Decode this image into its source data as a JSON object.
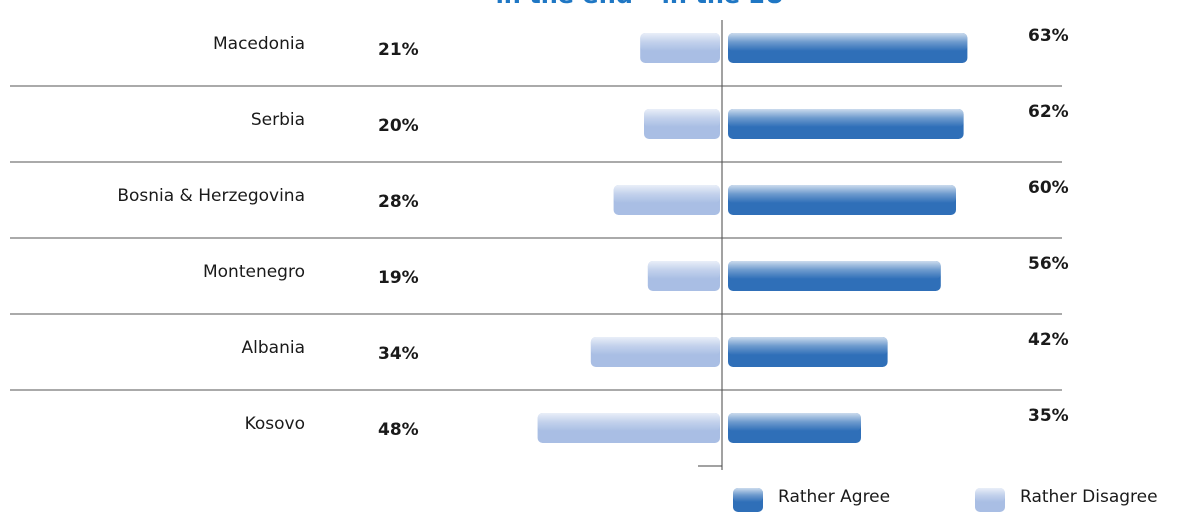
{
  "chart_data": {
    "type": "diverging-bar",
    "title": "in the end – in the EU",
    "categories": [
      "Macedonia",
      "Serbia",
      "Bosnia & Herzegovina",
      "Montenegro",
      "Albania",
      "Kosovo"
    ],
    "series": [
      {
        "name": "Rather Agree",
        "color": "#2f6fb8",
        "values": [
          63,
          62,
          60,
          56,
          42,
          35
        ],
        "value_labels": [
          "63%",
          "62%",
          "60%",
          "56%",
          "42%",
          "35%"
        ]
      },
      {
        "name": "Rather Disagree",
        "color": "#a9bee4",
        "values": [
          21,
          20,
          28,
          19,
          34,
          48
        ],
        "value_labels": [
          "21%",
          "20%",
          "28%",
          "19%",
          "34%",
          "48%"
        ]
      }
    ]
  }
}
